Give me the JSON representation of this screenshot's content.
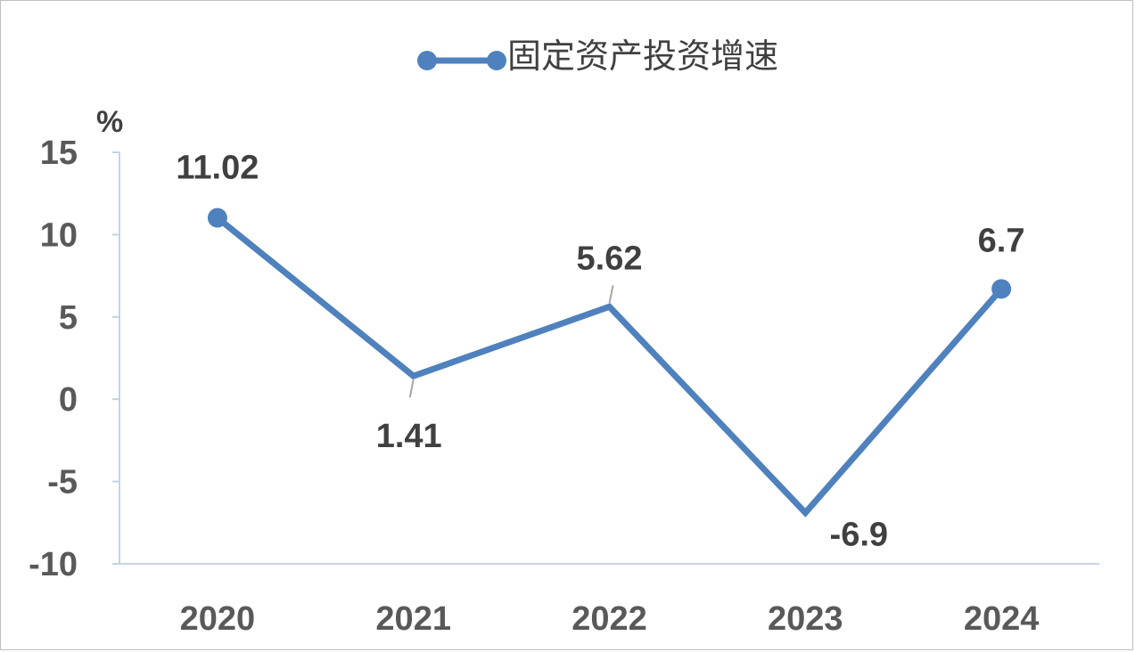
{
  "chart_data": {
    "type": "line",
    "legend": {
      "position": "top",
      "label": "固定资产投资增速"
    },
    "ylabel": "%",
    "ylim": [
      -10,
      15
    ],
    "yticks": [
      15,
      10,
      5,
      0,
      -5,
      -10
    ],
    "grid": false,
    "categories": [
      "2020",
      "2021",
      "2022",
      "2023",
      "2024"
    ],
    "series": [
      {
        "name": "固定资产投资增速",
        "values": [
          11.02,
          1.41,
          5.62,
          -6.9,
          6.7
        ],
        "labels": [
          "11.02",
          "1.41",
          "5.62",
          "-6.9",
          "6.7"
        ],
        "markers": [
          true,
          false,
          false,
          false,
          true
        ]
      }
    ],
    "colors": {
      "line": "#4f81bd",
      "axis": "#c5d3e6",
      "ticks": "#595959",
      "labels": "#404040"
    }
  }
}
